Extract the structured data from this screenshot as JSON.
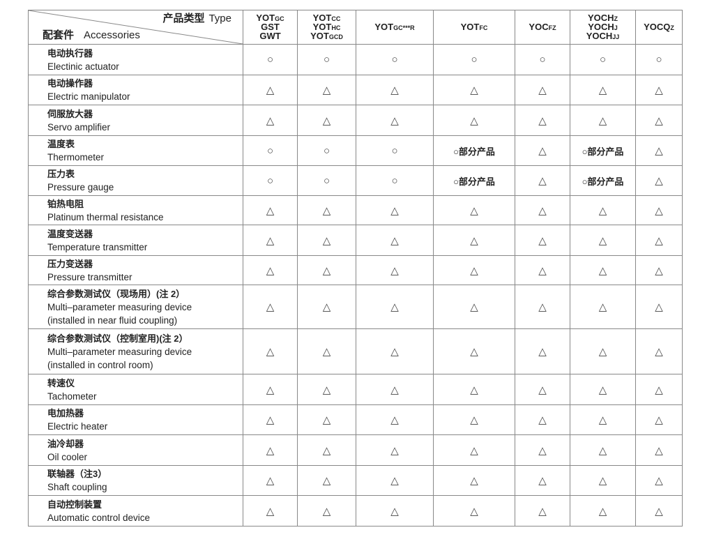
{
  "header": {
    "type_cn": "产品类型",
    "type_en": "Type",
    "acc_cn": "配套件",
    "acc_en": "Accessories",
    "columns": [
      [
        [
          "YOT",
          "GC"
        ],
        [
          "GST",
          ""
        ],
        [
          "GWT",
          ""
        ]
      ],
      [
        [
          "YOT",
          "CC"
        ],
        [
          "YOT",
          "HC"
        ],
        [
          "YOT",
          "GCD"
        ]
      ],
      [
        [
          "YOT",
          "GC***R"
        ]
      ],
      [
        [
          "YOT",
          "FC"
        ]
      ],
      [
        [
          "YOC",
          "FZ"
        ]
      ],
      [
        [
          "YOCH",
          "Z"
        ],
        [
          "YOCH",
          "J"
        ],
        [
          "YOCH",
          "JJ"
        ]
      ],
      [
        [
          "YOCQ",
          "Z"
        ]
      ]
    ]
  },
  "rows": [
    {
      "cn": "电动执行器",
      "en": [
        "Electinic actuator"
      ],
      "v": [
        "○",
        "○",
        "○",
        "○",
        "○",
        "○",
        "○"
      ]
    },
    {
      "cn": "电动操作器",
      "en": [
        "Electric manipulator"
      ],
      "v": [
        "△",
        "△",
        "△",
        "△",
        "△",
        "△",
        "△"
      ]
    },
    {
      "cn": "伺服放大器",
      "en": [
        "Servo amplifier"
      ],
      "v": [
        "△",
        "△",
        "△",
        "△",
        "△",
        "△",
        "△"
      ]
    },
    {
      "cn": "温度表",
      "en": [
        "Thermometer"
      ],
      "v": [
        "○",
        "○",
        "○",
        "○部分产品",
        "△",
        "○部分产品",
        "△"
      ]
    },
    {
      "cn": "压力表",
      "en": [
        "Pressure gauge"
      ],
      "v": [
        "○",
        "○",
        "○",
        "○部分产品",
        "△",
        "○部分产品",
        "△"
      ]
    },
    {
      "cn": "铂热电阻",
      "en": [
        "Platinum thermal resistance"
      ],
      "v": [
        "△",
        "△",
        "△",
        "△",
        "△",
        "△",
        "△"
      ]
    },
    {
      "cn": "温度变送器",
      "en": [
        "Temperature transmitter"
      ],
      "v": [
        "△",
        "△",
        "△",
        "△",
        "△",
        "△",
        "△"
      ]
    },
    {
      "cn": "压力变送器",
      "en": [
        "Pressure transmitter"
      ],
      "v": [
        "△",
        "△",
        "△",
        "△",
        "△",
        "△",
        "△"
      ]
    },
    {
      "cn": "综合参数测试仪（现场用）(注 2）",
      "en": [
        "Multi–parameter measuring device",
        "(installed in near fluid coupling)"
      ],
      "v": [
        "△",
        "△",
        "△",
        "△",
        "△",
        "△",
        "△"
      ]
    },
    {
      "cn": "综合参数测试仪（控制室用)(注 2）",
      "en": [
        "Multi–parameter measuring device",
        "(installed in control room)"
      ],
      "v": [
        "△",
        "△",
        "△",
        "△",
        "△",
        "△",
        "△"
      ]
    },
    {
      "cn": "转速仪",
      "en": [
        "Tachometer"
      ],
      "v": [
        "△",
        "△",
        "△",
        "△",
        "△",
        "△",
        "△"
      ]
    },
    {
      "cn": "电加热器",
      "en": [
        "Electric heater"
      ],
      "v": [
        "△",
        "△",
        "△",
        "△",
        "△",
        "△",
        "△"
      ]
    },
    {
      "cn": "油冷却器",
      "en": [
        "Oil cooler"
      ],
      "v": [
        "△",
        "△",
        "△",
        "△",
        "△",
        "△",
        "△"
      ]
    },
    {
      "cn": "联轴器（注3）",
      "en": [
        "Shaft coupling"
      ],
      "v": [
        "△",
        "△",
        "△",
        "△",
        "△",
        "△",
        "△"
      ]
    },
    {
      "cn": "自动控制装置",
      "en": [
        "Automatic control device"
      ],
      "v": [
        "△",
        "△",
        "△",
        "△",
        "△",
        "△",
        "△"
      ]
    }
  ]
}
